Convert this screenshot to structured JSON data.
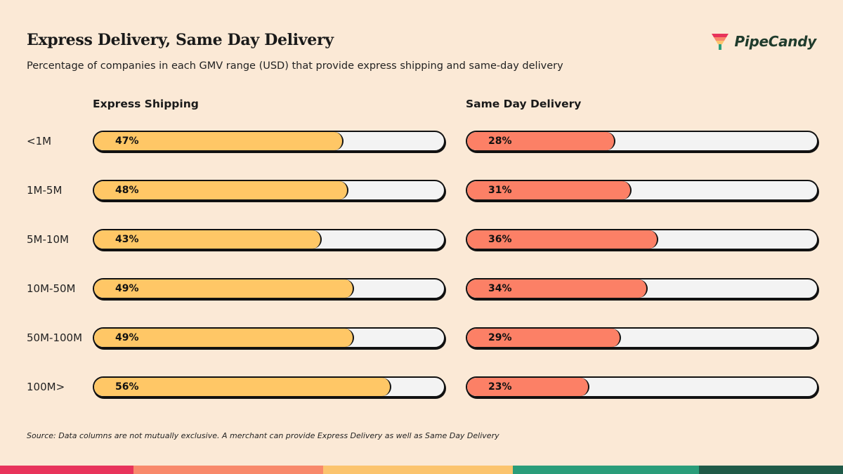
{
  "header": {
    "title": "Express Delivery, Same Day Delivery",
    "subtitle": "Percentage of companies in each GMV range (USD) that provide express shipping and same-day delivery"
  },
  "brand": {
    "name": "PipeCandy"
  },
  "chart_data": {
    "type": "bar",
    "orientation": "horizontal",
    "title": "Express Delivery, Same Day Delivery",
    "categories": [
      "<1M",
      "1M-5M",
      "5M-10M",
      "10M-50M",
      "50M-100M",
      "100M>"
    ],
    "series": [
      {
        "name": "Express Shipping",
        "values": [
          47,
          48,
          43,
          49,
          49,
          56
        ],
        "color": "#ffc766"
      },
      {
        "name": "Same Day Delivery",
        "values": [
          28,
          31,
          36,
          34,
          29,
          23
        ],
        "color": "#fc8066"
      }
    ],
    "value_suffix": "%",
    "xlim": [
      0,
      66
    ]
  },
  "footnote": "Source: Data columns are not mutually exclusive. A merchant can provide Express Delivery as well as Same Day Delivery",
  "colors": {
    "background": "#fbe9d6",
    "stripe": [
      "#e8335b",
      "#f8896b",
      "#fbc46e",
      "#2a9d7a",
      "#1f5a48"
    ]
  }
}
